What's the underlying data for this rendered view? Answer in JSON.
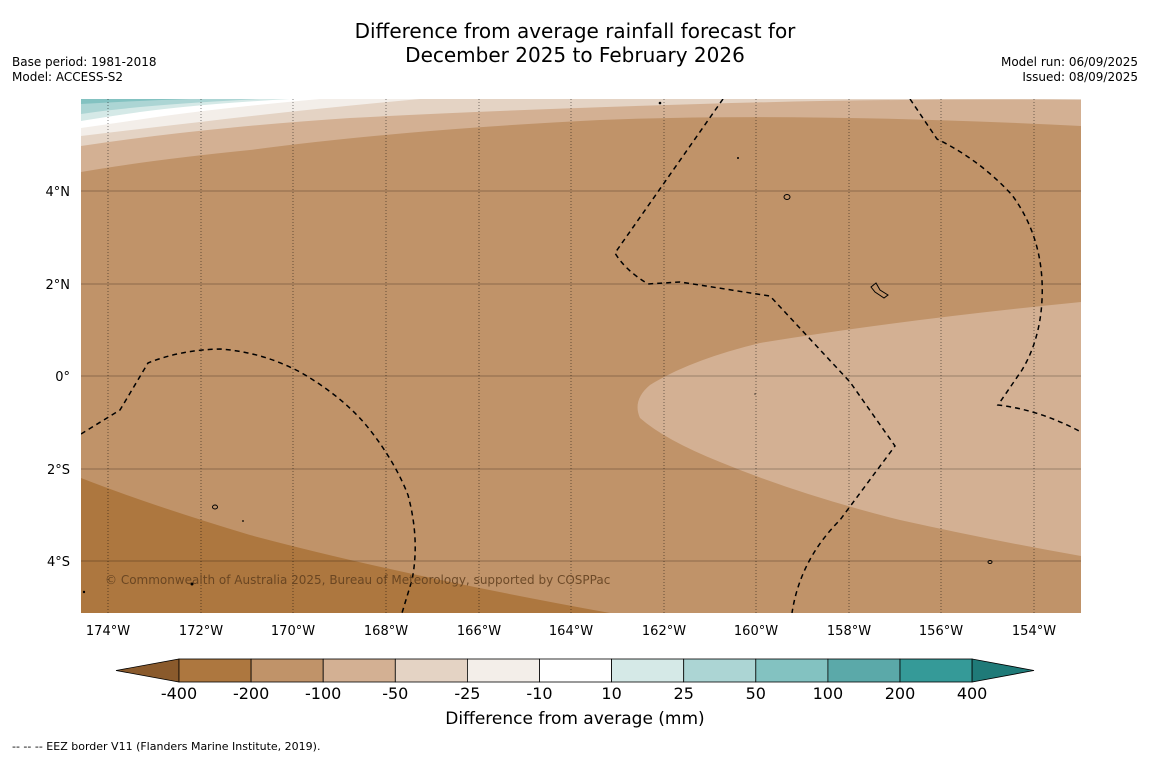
{
  "title": {
    "line1": "Difference from average rainfall forecast for",
    "line2": "December 2025 to February 2026"
  },
  "meta_left": {
    "base_period": "Base period: 1981-2018",
    "model": "Model: ACCESS-S2"
  },
  "meta_right": {
    "model_run": "Model run: 06/09/2025",
    "issued": "Issued: 08/09/2025"
  },
  "map": {
    "lon_labels": [
      "174°W",
      "172°W",
      "170°W",
      "168°W",
      "166°W",
      "164°W",
      "162°W",
      "160°W",
      "158°W",
      "156°W",
      "154°W"
    ],
    "lat_labels": [
      "4°N",
      "2°N",
      "0°",
      "2°S",
      "4°S"
    ],
    "copyright": "© Commonwealth of Australia 2025, Bureau of Meteorology, supported by COSPPac"
  },
  "colorbar": {
    "tick_labels": [
      "-400",
      "-200",
      "-100",
      "-50",
      "-25",
      "-10",
      "10",
      "25",
      "50",
      "100",
      "200",
      "400"
    ],
    "colors": [
      "#8a5a2c",
      "#ad773f",
      "#c09369",
      "#d3b093",
      "#e4d3c4",
      "#f3eee9",
      "#ffffff",
      "#d5e9e7",
      "#acd5d4",
      "#83c2c1",
      "#5ba9a9",
      "#359a98",
      "#1f7a78"
    ],
    "label": "Difference from average (mm)"
  },
  "footnote": "--  --  -- EEZ border V11 (Flanders Marine Institute, 2019)."
}
